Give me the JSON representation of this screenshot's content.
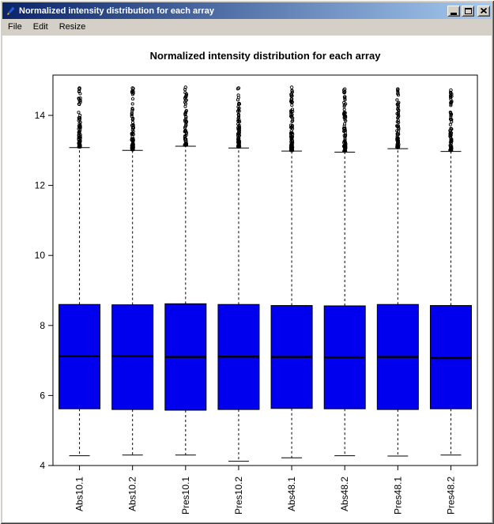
{
  "window": {
    "title": "Normalized intensity distribution for each array",
    "controls": {
      "minimize": "minimize",
      "maximize": "maximize",
      "close": "close"
    }
  },
  "menubar": {
    "items": [
      {
        "label": "File"
      },
      {
        "label": "Edit"
      },
      {
        "label": "Resize"
      }
    ]
  },
  "colors": {
    "titlebar_start": "#0a246a",
    "titlebar_end": "#a6caf0",
    "chrome": "#d4d0c8"
  },
  "chart_data": {
    "type": "boxplot",
    "title": "Normalized intensity distribution for each array",
    "xlabel": "",
    "ylabel": "",
    "y_ticks": [
      4,
      6,
      8,
      10,
      12,
      14
    ],
    "ylim": [
      3.85,
      15.15
    ],
    "grid": false,
    "legend": false,
    "box_fill": "#0000ee",
    "box_border": "#000000",
    "categories": [
      "Abs10.1",
      "Abs10.2",
      "Pres10.1",
      "Pres10.2",
      "Abs48.1",
      "Abs48.2",
      "Pres48.1",
      "Pres48.2"
    ],
    "series": [
      {
        "name": "Abs10.1",
        "whisker_low": 4.28,
        "q1": 5.62,
        "median": 7.12,
        "q3": 8.6,
        "whisker_high": 13.08,
        "outlier_min": 13.1,
        "outlier_max": 14.78,
        "outlier_count": 72
      },
      {
        "name": "Abs10.2",
        "whisker_low": 4.3,
        "q1": 5.6,
        "median": 7.13,
        "q3": 8.59,
        "whisker_high": 13.0,
        "outlier_min": 13.02,
        "outlier_max": 14.78,
        "outlier_count": 78
      },
      {
        "name": "Pres10.1",
        "whisker_low": 4.3,
        "q1": 5.58,
        "median": 7.1,
        "q3": 8.62,
        "whisker_high": 13.12,
        "outlier_min": 13.15,
        "outlier_max": 14.8,
        "outlier_count": 66
      },
      {
        "name": "Pres10.2",
        "whisker_low": 4.12,
        "q1": 5.6,
        "median": 7.11,
        "q3": 8.6,
        "whisker_high": 13.07,
        "outlier_min": 13.1,
        "outlier_max": 14.78,
        "outlier_count": 70
      },
      {
        "name": "Abs48.1",
        "whisker_low": 4.22,
        "q1": 5.63,
        "median": 7.1,
        "q3": 8.57,
        "whisker_high": 12.98,
        "outlier_min": 13.0,
        "outlier_max": 14.8,
        "outlier_count": 88
      },
      {
        "name": "Abs48.2",
        "whisker_low": 4.28,
        "q1": 5.62,
        "median": 7.09,
        "q3": 8.56,
        "whisker_high": 12.95,
        "outlier_min": 12.98,
        "outlier_max": 14.75,
        "outlier_count": 76
      },
      {
        "name": "Pres48.1",
        "whisker_low": 4.27,
        "q1": 5.6,
        "median": 7.1,
        "q3": 8.6,
        "whisker_high": 13.05,
        "outlier_min": 13.08,
        "outlier_max": 14.75,
        "outlier_count": 70
      },
      {
        "name": "Pres48.2",
        "whisker_low": 4.3,
        "q1": 5.62,
        "median": 7.07,
        "q3": 8.57,
        "whisker_high": 12.97,
        "outlier_min": 13.0,
        "outlier_max": 14.72,
        "outlier_count": 72
      }
    ]
  }
}
